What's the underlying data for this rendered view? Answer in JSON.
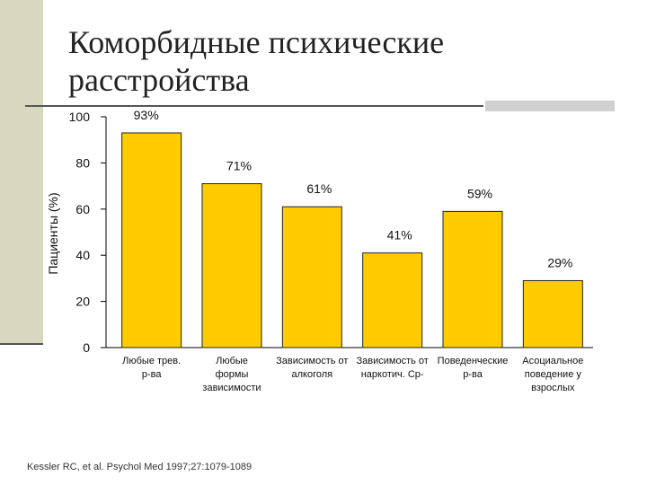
{
  "title_lines": [
    "Коморбидные психические",
    "расстройства"
  ],
  "source": "Kessler RC, et al. Psychol Med 1997;27:1079-1089",
  "colors": {
    "bar": "#ffcc00",
    "bar_stroke": "#222222",
    "axis": "#000000",
    "side_band": "#d8d8c0"
  },
  "chart_data": {
    "type": "bar",
    "ylabel": "Пациенты (%)",
    "ylim": [
      0,
      100
    ],
    "yticks": [
      0,
      20,
      40,
      60,
      80,
      100
    ],
    "grid": false,
    "categories": [
      [
        "Любые трев.",
        "р-ва"
      ],
      [
        "Любые",
        "формы",
        "зависимости"
      ],
      [
        "Зависимость от",
        "алкоголя"
      ],
      [
        "Зависимость от",
        "наркотич. Ср-"
      ],
      [
        "Поведенческие",
        "р-ва"
      ],
      [
        "Асоциальное",
        "поведение у",
        "взрослых"
      ]
    ],
    "values": [
      93,
      71,
      61,
      41,
      59,
      29
    ],
    "data_labels": [
      "93%",
      "71%",
      "61%",
      "41%",
      "59%",
      "29%"
    ]
  }
}
